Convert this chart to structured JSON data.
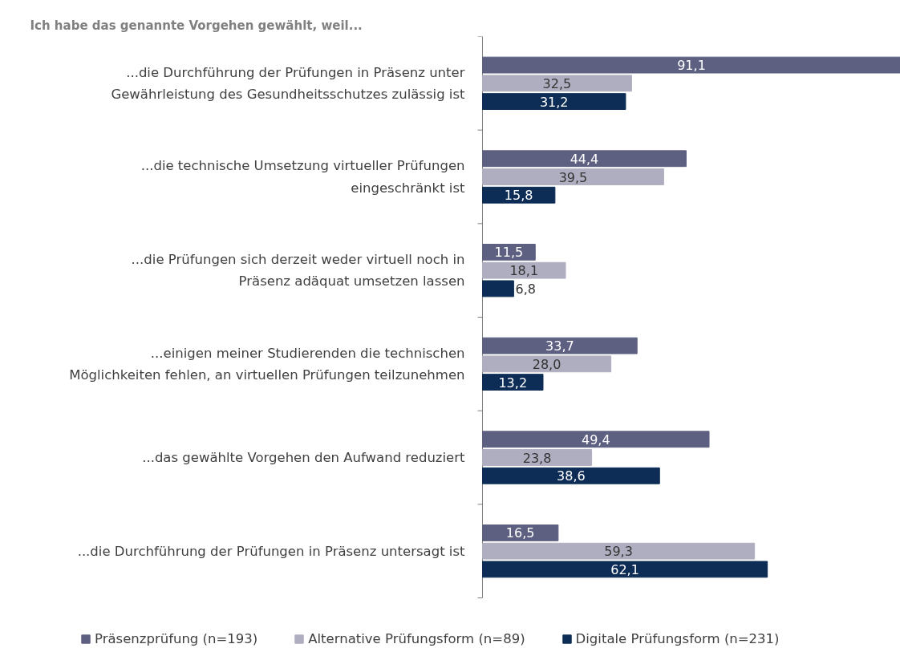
{
  "chart_data": {
    "type": "bar",
    "orientation": "horizontal",
    "title": "Ich habe das genannte Vorgehen gewählt, weil...",
    "legend": "bottom",
    "grid": false,
    "categories": [
      "...die Durchführung der Prüfungen in Präsenz unter Gewährleistung des Gesundheitsschutzes zulässig ist",
      "...die technische Umsetzung virtueller Prüfungen eingeschränkt ist",
      "...die Prüfungen sich derzeit weder virtuell noch in Präsenz adäquat umsetzen lassen",
      "...einigen meiner Studierenden die technischen Möglichkeiten fehlen, an virtuellen Prüfungen teilzunehmen",
      "...das gewählte Vorgehen den Aufwand reduziert",
      "...die Durchführung der Prüfungen in Präsenz untersagt ist"
    ],
    "series": [
      {
        "name": "Präsenzprüfung (n=193)",
        "color": "#5d6080",
        "values": [
          91.1,
          44.4,
          11.5,
          33.7,
          49.4,
          16.5
        ],
        "value_labels": [
          "91,1",
          "44,4",
          "11,5",
          "33,7",
          "49,4",
          "16,5"
        ]
      },
      {
        "name": "Alternative Prüfungsform (n=89)",
        "color": "#aeaec0",
        "values": [
          32.5,
          39.5,
          18.1,
          28.0,
          23.8,
          59.3
        ],
        "value_labels": [
          "32,5",
          "39,5",
          "18,1",
          "28,0",
          "23,8",
          "59,3"
        ]
      },
      {
        "name": "Digitale Prüfungsform (n=231)",
        "color": "#0d2d57",
        "values": [
          31.2,
          15.8,
          6.8,
          13.2,
          38.6,
          62.1
        ],
        "value_labels": [
          "31,2",
          "15,8",
          "6,8",
          "13,2",
          "38,6",
          "62,1"
        ]
      }
    ]
  }
}
